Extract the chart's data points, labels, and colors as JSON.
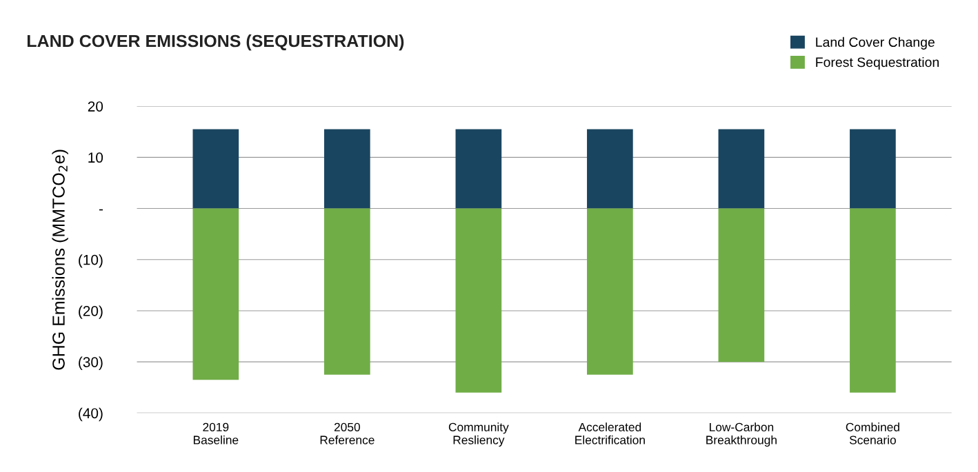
{
  "chart_data": {
    "type": "bar",
    "title": "LAND COVER EMISSIONS (SEQUESTRATION)",
    "ylabel": "GHG Emissions (MMTCO$_{2}$e)",
    "categories": [
      "2019\nBaseline",
      "2050\nReference",
      "Community\nResliency",
      "Accelerated\nElectrification",
      "Low-Carbon\nBreakthrough",
      "Combined\nScenario"
    ],
    "series": [
      {
        "name": "Land Cover Change",
        "color": "#1a4560",
        "values": [
          15.5,
          15.5,
          15.5,
          15.5,
          15.5,
          15.5
        ]
      },
      {
        "name": "Forest Sequestration",
        "color": "#70ad47",
        "values": [
          -33.5,
          -32.5,
          -36,
          -32.5,
          -30,
          -36
        ]
      }
    ],
    "stacked": true,
    "ylim": [
      -40,
      20
    ],
    "yticks": [
      {
        "value": -40,
        "label": "(40)"
      },
      {
        "value": -30,
        "label": "(30)"
      },
      {
        "value": -20,
        "label": "(20)"
      },
      {
        "value": -10,
        "label": "(10)"
      },
      {
        "value": 0,
        "label": "-"
      },
      10,
      20
    ],
    "grid": "y",
    "legend": "top right"
  }
}
